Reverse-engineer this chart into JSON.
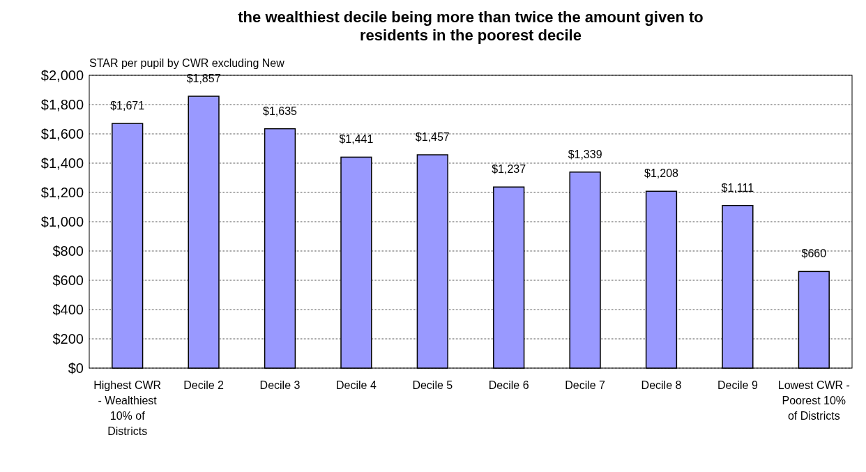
{
  "chart_data": {
    "type": "bar",
    "title": "the wealthiest decile being more than twice the amount given to residents in the poorest decile",
    "subtitle": "STAR per pupil by CWR excluding New",
    "categories": [
      "Highest CWR - Wealthiest 10% of Districts",
      "Decile 2",
      "Decile 3",
      "Decile 4",
      "Decile 5",
      "Decile 6",
      "Decile 7",
      "Decile 8",
      "Decile 9",
      "Lowest CWR - Poorest 10% of Districts"
    ],
    "values": [
      1671,
      1857,
      1635,
      1441,
      1457,
      1237,
      1339,
      1208,
      1111,
      660
    ],
    "value_labels": [
      "$1,671",
      "$1,857",
      "$1,635",
      "$1,441",
      "$1,457",
      "$1,237",
      "$1,339",
      "$1,208",
      "$1,111",
      "$660"
    ],
    "color": "#9999ff",
    "ylim": [
      0,
      2000
    ],
    "yticks": [
      {
        "value": 0,
        "label": "$0"
      },
      {
        "value": 200,
        "label": "$200"
      },
      {
        "value": 400,
        "label": "$400"
      },
      {
        "value": 600,
        "label": "$600"
      },
      {
        "value": 800,
        "label": "$800"
      },
      {
        "value": 1000,
        "label": "$1,000"
      },
      {
        "value": 1200,
        "label": "$1,200"
      },
      {
        "value": 1400,
        "label": "$1,400"
      },
      {
        "value": 1600,
        "label": "$1,600"
      },
      {
        "value": 1800,
        "label": "$1,800"
      },
      {
        "value": 2000,
        "label": "$2,000"
      }
    ],
    "grid": "y"
  }
}
